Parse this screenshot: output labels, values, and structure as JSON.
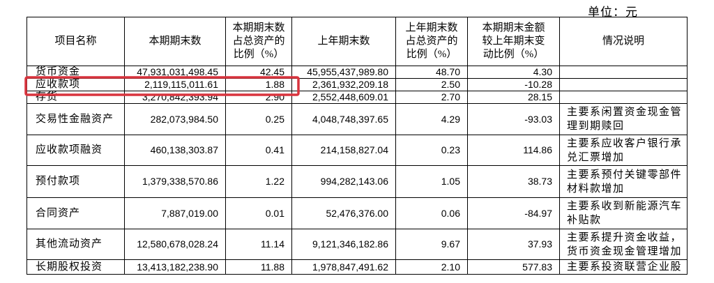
{
  "unit_label": "单位：元",
  "table": {
    "header": [
      [
        "项目名称"
      ],
      [
        "本期期末数"
      ],
      [
        "本期期末数",
        "占总资产的",
        "比例（%）"
      ],
      [
        "上年期末数"
      ],
      [
        "上年期末数",
        "占总资产的",
        "比例（%）"
      ],
      [
        "本期期末金额",
        "较上年期末变",
        "动比例（%）"
      ],
      [
        "情况说明"
      ]
    ],
    "rows": [
      [
        "货币资金",
        "47,931,031,498.45",
        "42.45",
        "45,955,437,989.80",
        "48.70",
        "4.30",
        ""
      ],
      [
        "应收款项",
        "2,119,115,011.61",
        "1.88",
        "2,361,932,209.18",
        "2.50",
        "-10.28",
        ""
      ],
      [
        "存货",
        "3,270,842,393.94",
        "2.90",
        "2,552,448,609.01",
        "2.70",
        "28.15",
        ""
      ],
      [
        "交易性金融资产",
        "282,073,984.50",
        "0.25",
        "4,048,748,397.65",
        "4.29",
        "-93.03",
        "主要系闲置资金现金管理到期赎回"
      ],
      [
        "应收款项融资",
        "460,138,303.87",
        "0.41",
        "214,158,827.04",
        "0.23",
        "114.86",
        "主要系应收客户银行承兑汇票增加"
      ],
      [
        "预付款项",
        "1,379,338,570.86",
        "1.22",
        "994,282,143.06",
        "1.05",
        "38.73",
        "主要系预付关键零部件材料款增加"
      ],
      [
        "合同资产",
        "7,887,019.00",
        "0.01",
        "52,476,376.00",
        "0.06",
        "-84.97",
        "主要系收到新能源汽车补贴款"
      ],
      [
        "其他流动资产",
        "12,580,678,028.24",
        "11.14",
        "9,121,346,182.86",
        "9.67",
        "37.93",
        "主要系提升资金收益，货币资金现金管理增加"
      ],
      [
        "长期股权投资",
        "13,413,182,238.90",
        "11.88",
        "1,978,847,491.62",
        "2.10",
        "577.83",
        "主要系投资联营企业股"
      ]
    ]
  }
}
